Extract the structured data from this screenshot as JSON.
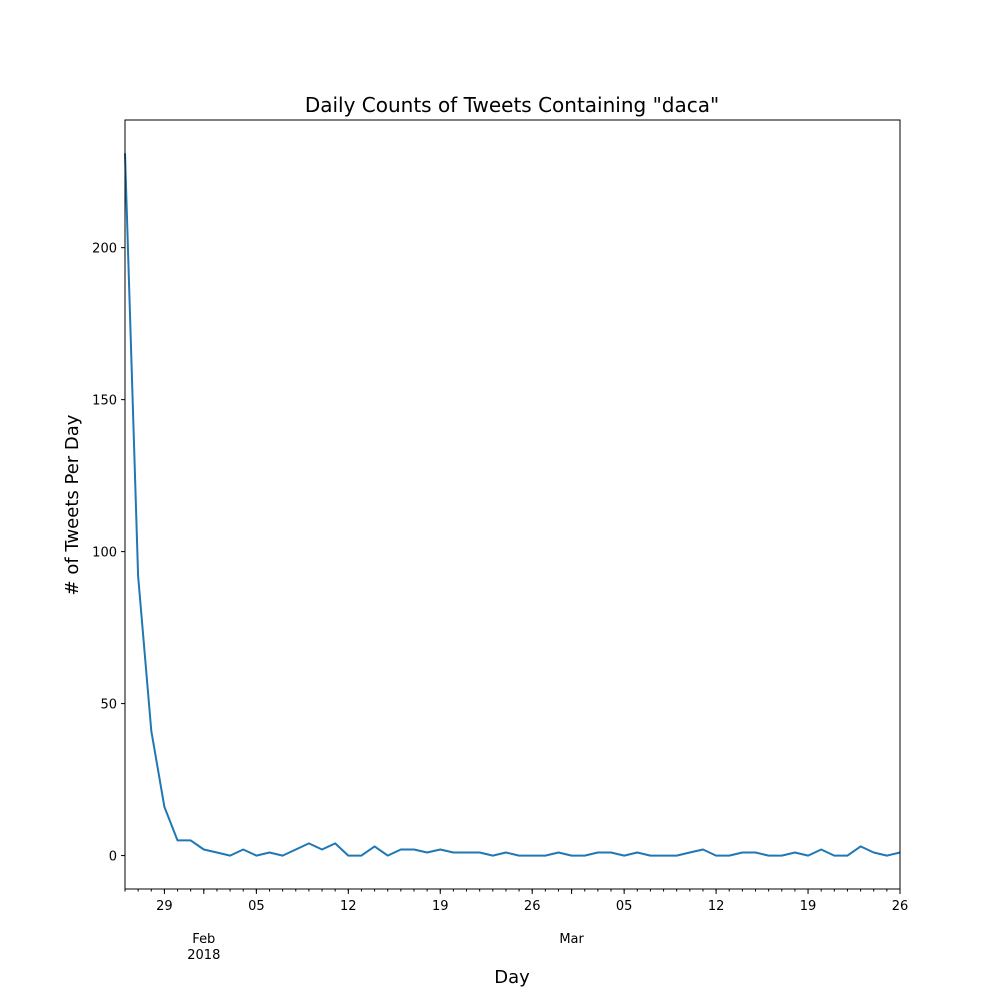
{
  "chart_data": {
    "type": "line",
    "title": "Daily Counts of Tweets Containing \"daca\"",
    "xlabel": "Day",
    "ylabel": "# of Tweets Per Day",
    "x_start": "2018-01-26",
    "x_end": "2018-03-26",
    "ylim": [
      -11,
      242
    ],
    "grid": false,
    "color": "#1f77b4",
    "y_ticks": [
      "0",
      "50",
      "100",
      "150",
      "200"
    ],
    "x_major_ticks": [
      {
        "date": "2018-01-29",
        "label": "29"
      },
      {
        "date": "2018-02-05",
        "label": "05"
      },
      {
        "date": "2018-02-12",
        "label": "12"
      },
      {
        "date": "2018-02-19",
        "label": "19"
      },
      {
        "date": "2018-02-26",
        "label": "26"
      },
      {
        "date": "2018-03-05",
        "label": "05"
      },
      {
        "date": "2018-03-12",
        "label": "12"
      },
      {
        "date": "2018-03-19",
        "label": "19"
      },
      {
        "date": "2018-03-26",
        "label": "26"
      }
    ],
    "x_month_labels": [
      {
        "date": "2018-02-01",
        "label": "Feb",
        "sublabel": "2018"
      },
      {
        "date": "2018-03-01",
        "label": "Mar",
        "sublabel": ""
      }
    ],
    "series": [
      {
        "x": [
          "2018-01-26",
          "2018-01-27",
          "2018-01-28",
          "2018-01-29",
          "2018-01-30",
          "2018-01-31",
          "2018-02-01",
          "2018-02-02",
          "2018-02-03",
          "2018-02-04",
          "2018-02-05",
          "2018-02-06",
          "2018-02-07",
          "2018-02-08",
          "2018-02-09",
          "2018-02-10",
          "2018-02-11",
          "2018-02-12",
          "2018-02-13",
          "2018-02-14",
          "2018-02-15",
          "2018-02-16",
          "2018-02-17",
          "2018-02-18",
          "2018-02-19",
          "2018-02-20",
          "2018-02-21",
          "2018-02-22",
          "2018-02-23",
          "2018-02-24",
          "2018-02-25",
          "2018-02-26",
          "2018-02-27",
          "2018-02-28",
          "2018-03-01",
          "2018-03-02",
          "2018-03-03",
          "2018-03-04",
          "2018-03-05",
          "2018-03-06",
          "2018-03-07",
          "2018-03-08",
          "2018-03-09",
          "2018-03-10",
          "2018-03-11",
          "2018-03-12",
          "2018-03-13",
          "2018-03-14",
          "2018-03-15",
          "2018-03-16",
          "2018-03-17",
          "2018-03-18",
          "2018-03-19",
          "2018-03-20",
          "2018-03-21",
          "2018-03-22",
          "2018-03-23",
          "2018-03-24",
          "2018-03-25",
          "2018-03-26"
        ],
        "values": [
          231,
          92,
          41,
          16,
          5,
          5,
          2,
          1,
          0,
          2,
          0,
          1,
          0,
          2,
          4,
          2,
          4,
          0,
          0,
          3,
          0,
          2,
          2,
          1,
          2,
          1,
          1,
          1,
          0,
          1,
          0,
          0,
          0,
          1,
          0,
          0,
          1,
          1,
          0,
          1,
          0,
          0,
          0,
          1,
          2,
          0,
          0,
          1,
          1,
          0,
          0,
          1,
          0,
          2,
          0,
          0,
          3,
          1,
          0,
          1
        ]
      }
    ]
  }
}
